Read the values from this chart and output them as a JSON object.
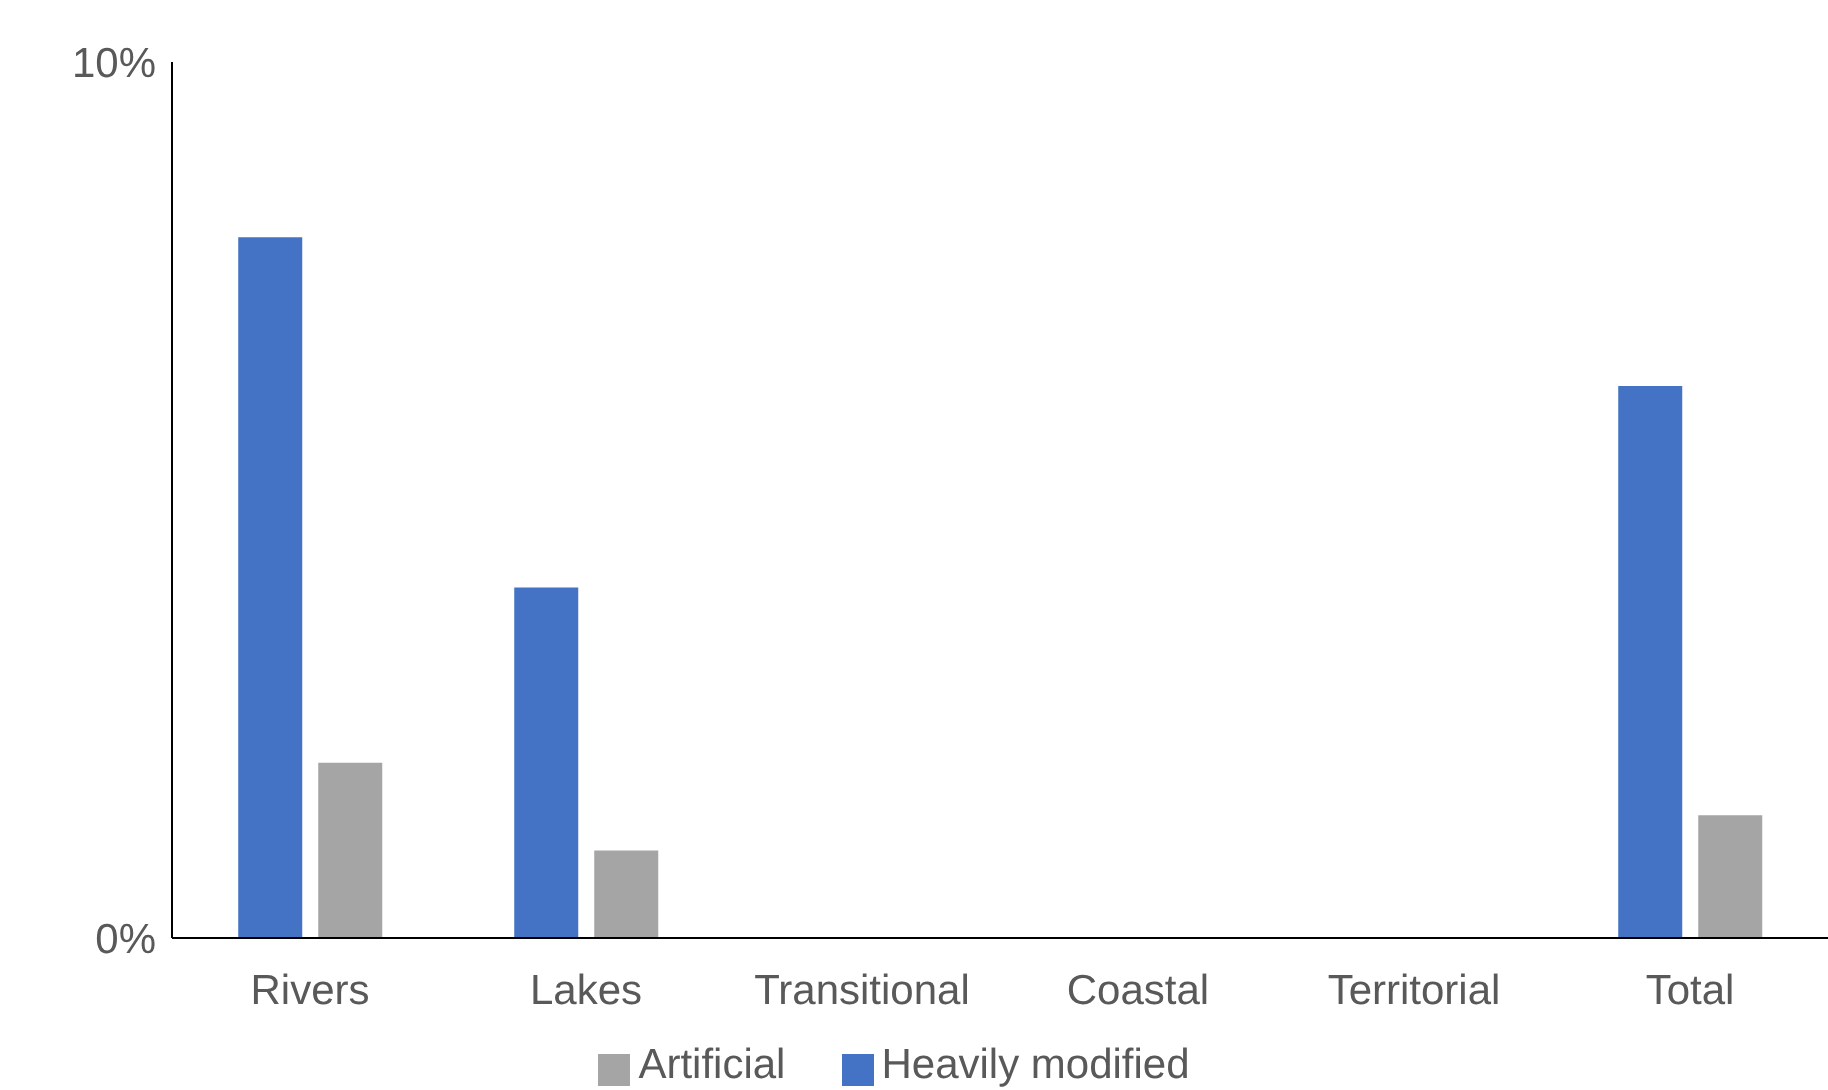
{
  "chart_data": {
    "type": "bar",
    "categories": [
      "Rivers",
      "Lakes",
      "Transitional",
      "Coastal",
      "Territorial",
      "Total"
    ],
    "series": [
      {
        "name": "Heavily modified",
        "color": "#4472c4",
        "values": [
          8.0,
          4.0,
          0,
          0,
          0,
          6.3
        ]
      },
      {
        "name": "Artificial",
        "color": "#a5a5a5",
        "values": [
          2.0,
          1.0,
          0,
          0,
          0,
          1.4
        ]
      }
    ],
    "ylim": [
      0,
      10
    ],
    "yticks": [
      {
        "value": 0,
        "label": "0%"
      },
      {
        "value": 10,
        "label": "10%"
      }
    ],
    "grid": false,
    "legend": "bottom"
  }
}
